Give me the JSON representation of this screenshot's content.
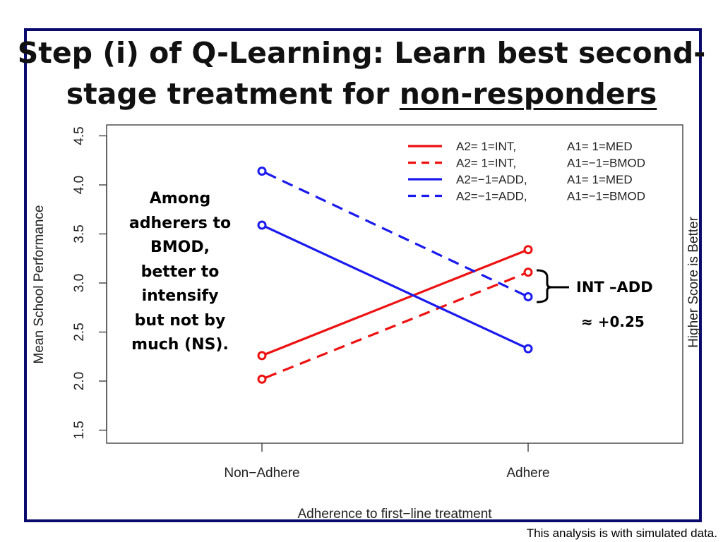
{
  "slide": {
    "title_part1": "Step (i) of Q-Learning: Learn best second-stage treatment for ",
    "title_part2": "non-responders",
    "note_lines": [
      "Among",
      "adherers to",
      "BMOD,",
      "better to",
      "intensify",
      "but not by",
      "much (NS)."
    ],
    "diff_label": "INT –ADD",
    "diff_value": "≈ +0.25",
    "footnote": "This analysis is with simulated data.",
    "right_axis_label": "Higher Score is Better",
    "frame_color": "#0a0a6e"
  },
  "chart_data": {
    "type": "line",
    "categories": [
      "Non−Adhere",
      "Adhere"
    ],
    "xlabel": "Adherence to first−line treatment",
    "ylabel": "Mean School Performance",
    "ylim": [
      1.5,
      4.5
    ],
    "yticks": [
      1.5,
      2.0,
      2.5,
      3.0,
      3.5,
      4.0,
      4.5
    ],
    "ytick_labels": [
      "1.5",
      "2.0",
      "2.5",
      "3.0",
      "3.5",
      "4.0",
      "4.5"
    ],
    "grid": false,
    "legend_position": "top-right",
    "series": [
      {
        "name": "A2= 1=INT,      A1= 1=MED",
        "color": "#ee1111",
        "dash": "solid",
        "values": [
          2.26,
          3.34
        ]
      },
      {
        "name": "A2= 1=INT,      A1=−1=BMOD",
        "color": "#ee1111",
        "dash": "dashed",
        "values": [
          2.02,
          3.11
        ]
      },
      {
        "name": "A2=−1=ADD,   A1= 1=MED",
        "color": "#1a1aee",
        "dash": "solid",
        "values": [
          3.59,
          2.33
        ]
      },
      {
        "name": "A2=−1=ADD,   A1=−1=BMOD",
        "color": "#1a1aee",
        "dash": "dashed",
        "values": [
          4.14,
          2.86
        ]
      }
    ]
  }
}
